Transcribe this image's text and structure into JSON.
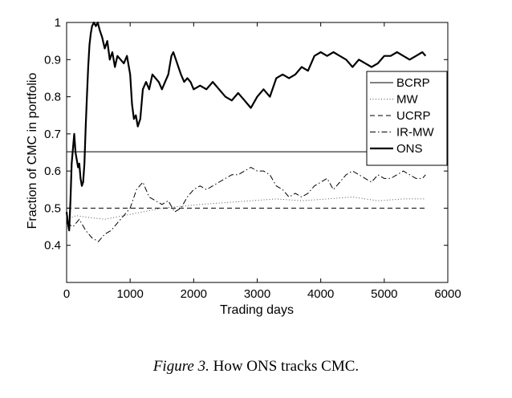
{
  "caption": {
    "label": "Figure 3.",
    "text": "How ONS tracks CMC."
  },
  "chart_data": {
    "type": "line",
    "title": "",
    "xlabel": "Trading days",
    "ylabel": "Fraction of CMC in portfolio",
    "xlim": [
      0,
      6000
    ],
    "ylim": [
      0.3,
      1.0
    ],
    "xticks": [
      0,
      1000,
      2000,
      3000,
      4000,
      5000,
      6000
    ],
    "yticks": [
      0.4,
      0.5,
      0.6,
      0.7,
      0.8,
      0.9,
      1
    ],
    "xtick_labels": [
      "0",
      "1000",
      "2000",
      "3000",
      "4000",
      "5000",
      "6000"
    ],
    "ytick_labels": [
      "0.4",
      "0.5",
      "0.6",
      "0.7",
      "0.8",
      "0.9",
      "1"
    ],
    "grid": false,
    "legend_position": "top-right",
    "series": [
      {
        "name": "BCRP",
        "style": "solid",
        "width": 1.0,
        "color": "#000000",
        "x": [
          0,
          5650
        ],
        "y": [
          0.652,
          0.652
        ]
      },
      {
        "name": "MW",
        "style": "dotted",
        "width": 1.0,
        "color": "#555555",
        "x": [
          0,
          150,
          350,
          600,
          900,
          1200,
          1500,
          1800,
          2100,
          2500,
          2900,
          3300,
          3700,
          4100,
          4500,
          4900,
          5300,
          5650
        ],
        "y": [
          0.47,
          0.48,
          0.475,
          0.47,
          0.48,
          0.49,
          0.5,
          0.505,
          0.51,
          0.515,
          0.52,
          0.525,
          0.52,
          0.525,
          0.53,
          0.52,
          0.525,
          0.525
        ]
      },
      {
        "name": "UCRP",
        "style": "dashed",
        "width": 1.0,
        "color": "#000000",
        "x": [
          0,
          5650
        ],
        "y": [
          0.5,
          0.5
        ]
      },
      {
        "name": "IR-MW",
        "style": "dashdot",
        "width": 1.0,
        "color": "#000000",
        "x": [
          0,
          100,
          200,
          300,
          400,
          500,
          600,
          700,
          800,
          900,
          1000,
          1100,
          1200,
          1300,
          1400,
          1500,
          1600,
          1700,
          1800,
          1900,
          2000,
          2100,
          2200,
          2300,
          2400,
          2500,
          2600,
          2700,
          2800,
          2900,
          3000,
          3100,
          3200,
          3300,
          3400,
          3500,
          3600,
          3700,
          3800,
          3900,
          4000,
          4100,
          4200,
          4300,
          4400,
          4500,
          4600,
          4700,
          4800,
          4900,
          5000,
          5100,
          5200,
          5300,
          5400,
          5500,
          5600,
          5650
        ],
        "y": [
          0.46,
          0.45,
          0.47,
          0.44,
          0.42,
          0.41,
          0.43,
          0.44,
          0.46,
          0.48,
          0.5,
          0.55,
          0.57,
          0.53,
          0.52,
          0.51,
          0.52,
          0.49,
          0.5,
          0.53,
          0.55,
          0.56,
          0.55,
          0.56,
          0.57,
          0.58,
          0.59,
          0.59,
          0.6,
          0.61,
          0.6,
          0.6,
          0.59,
          0.56,
          0.55,
          0.53,
          0.54,
          0.53,
          0.54,
          0.56,
          0.57,
          0.58,
          0.55,
          0.57,
          0.59,
          0.6,
          0.59,
          0.58,
          0.57,
          0.59,
          0.58,
          0.58,
          0.59,
          0.6,
          0.59,
          0.58,
          0.58,
          0.59
        ]
      },
      {
        "name": "ONS",
        "style": "solid",
        "width": 2.2,
        "color": "#000000",
        "x": [
          0,
          20,
          40,
          60,
          80,
          100,
          120,
          140,
          160,
          180,
          200,
          220,
          240,
          260,
          280,
          300,
          320,
          340,
          360,
          380,
          400,
          430,
          460,
          490,
          520,
          560,
          600,
          640,
          680,
          720,
          760,
          800,
          850,
          900,
          950,
          1000,
          1030,
          1060,
          1090,
          1120,
          1160,
          1200,
          1250,
          1300,
          1350,
          1400,
          1450,
          1500,
          1550,
          1600,
          1650,
          1680,
          1720,
          1760,
          1800,
          1850,
          1900,
          1950,
          2000,
          2100,
          2200,
          2300,
          2400,
          2500,
          2600,
          2700,
          2800,
          2900,
          3000,
          3100,
          3200,
          3300,
          3400,
          3500,
          3600,
          3700,
          3800,
          3900,
          4000,
          4100,
          4200,
          4300,
          4400,
          4500,
          4600,
          4700,
          4800,
          4900,
          5000,
          5100,
          5200,
          5300,
          5400,
          5500,
          5600,
          5650
        ],
        "y": [
          0.49,
          0.46,
          0.44,
          0.52,
          0.62,
          0.66,
          0.7,
          0.65,
          0.63,
          0.61,
          0.62,
          0.58,
          0.56,
          0.57,
          0.62,
          0.72,
          0.8,
          0.88,
          0.94,
          0.97,
          0.99,
          1.0,
          0.99,
          1.0,
          0.98,
          0.96,
          0.93,
          0.95,
          0.9,
          0.92,
          0.88,
          0.91,
          0.9,
          0.89,
          0.91,
          0.86,
          0.78,
          0.74,
          0.75,
          0.72,
          0.74,
          0.82,
          0.84,
          0.82,
          0.86,
          0.85,
          0.84,
          0.82,
          0.84,
          0.86,
          0.91,
          0.92,
          0.9,
          0.88,
          0.86,
          0.84,
          0.85,
          0.84,
          0.82,
          0.83,
          0.82,
          0.84,
          0.82,
          0.8,
          0.79,
          0.81,
          0.79,
          0.77,
          0.8,
          0.82,
          0.8,
          0.85,
          0.86,
          0.85,
          0.86,
          0.88,
          0.87,
          0.91,
          0.92,
          0.91,
          0.92,
          0.91,
          0.9,
          0.88,
          0.9,
          0.89,
          0.88,
          0.89,
          0.91,
          0.91,
          0.92,
          0.91,
          0.9,
          0.91,
          0.92,
          0.91
        ]
      }
    ]
  }
}
